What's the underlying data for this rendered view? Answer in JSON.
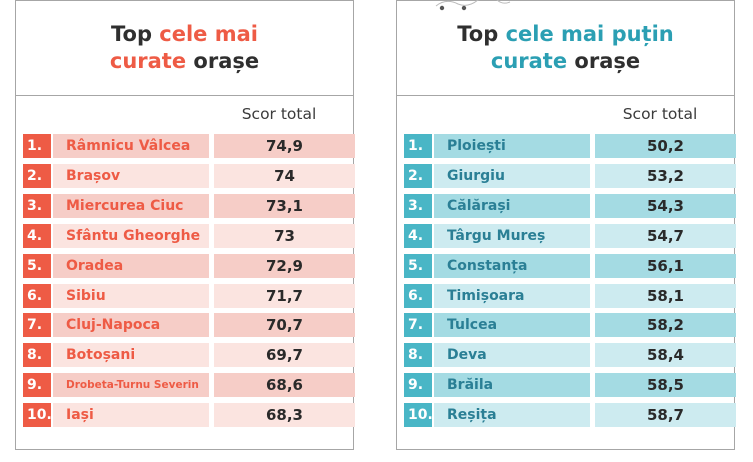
{
  "colors": {
    "left_accent": "#ee5b45",
    "left_row_dark": "#f6cdc7",
    "left_row_light": "#fbe4e0",
    "right_accent": "#2b9fb3",
    "right_rank": "#49b6c6",
    "right_row_dark": "#a4dbe3",
    "right_row_light": "#cdebf0",
    "right_name": "#2a7f95"
  },
  "left": {
    "title": {
      "w1": "Top",
      "w2": "cele mai",
      "w3": "curate",
      "w4": "orașe"
    },
    "header": "Scor total",
    "rows": [
      {
        "rank": "1.",
        "name": "Râmnicu Vâlcea",
        "score": "74,9"
      },
      {
        "rank": "2.",
        "name": "Brașov",
        "score": "74"
      },
      {
        "rank": "3.",
        "name": "Miercurea Ciuc",
        "score": "73,1"
      },
      {
        "rank": "4.",
        "name": "Sfântu Gheorghe",
        "score": "73"
      },
      {
        "rank": "5.",
        "name": "Oradea",
        "score": "72,9"
      },
      {
        "rank": "6.",
        "name": "Sibiu",
        "score": "71,7"
      },
      {
        "rank": "7.",
        "name": "Cluj-Napoca",
        "score": "70,7"
      },
      {
        "rank": "8.",
        "name": "Botoșani",
        "score": "69,7"
      },
      {
        "rank": "9.",
        "name": "Drobeta-Turnu Severin",
        "score": "68,6"
      },
      {
        "rank": "10.",
        "name": "Iași",
        "score": "68,3"
      }
    ]
  },
  "right": {
    "title": {
      "w1": "Top",
      "w2": "cele mai puțin",
      "w3": "curate",
      "w4": "orașe"
    },
    "header": "Scor total",
    "rows": [
      {
        "rank": "1.",
        "name": "Ploiești",
        "score": "50,2"
      },
      {
        "rank": "2.",
        "name": "Giurgiu",
        "score": "53,2"
      },
      {
        "rank": "3.",
        "name": "Călărași",
        "score": "54,3"
      },
      {
        "rank": "4.",
        "name": "Târgu Mureș",
        "score": "54,7"
      },
      {
        "rank": "5.",
        "name": "Constanța",
        "score": "56,1"
      },
      {
        "rank": "6.",
        "name": "Timișoara",
        "score": "58,1"
      },
      {
        "rank": "7.",
        "name": "Tulcea",
        "score": "58,2"
      },
      {
        "rank": "8.",
        "name": "Deva",
        "score": "58,4"
      },
      {
        "rank": "9.",
        "name": "Brăila",
        "score": "58,5"
      },
      {
        "rank": "10.",
        "name": "Reșița",
        "score": "58,7"
      }
    ]
  }
}
